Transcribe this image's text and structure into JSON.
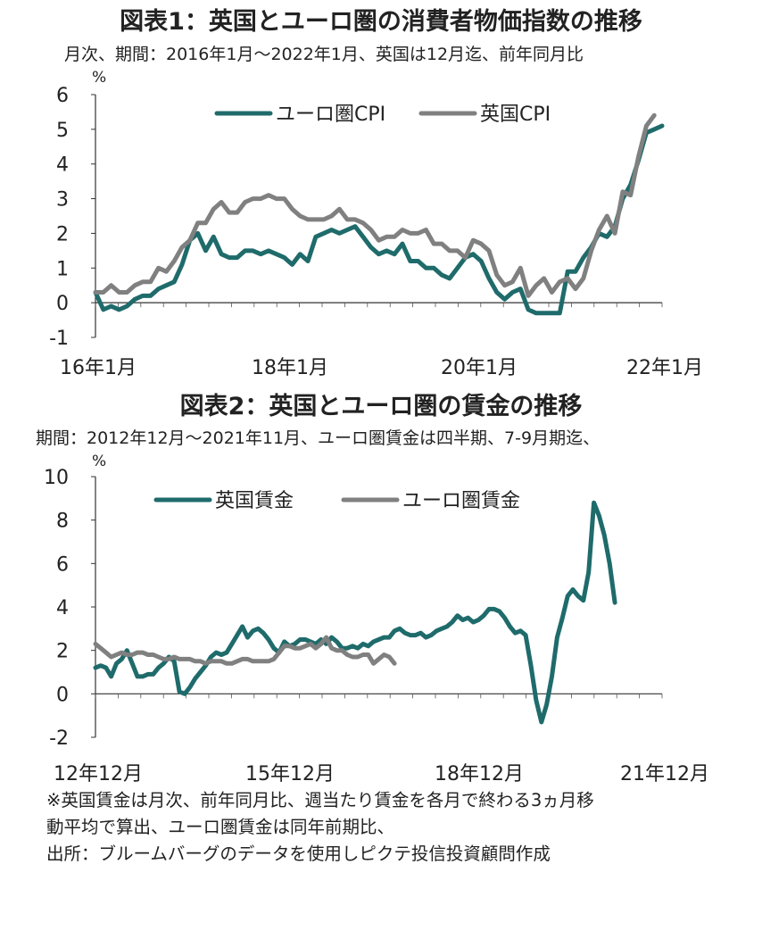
{
  "chart_data": [
    {
      "type": "line",
      "title": "図表1：英国とユーロ圏の消費者物価指数の推移",
      "subtitle": "月次、期間：2016年1月～2022年1月、英国は12月迄、前年同月比",
      "unit": "%",
      "ylim": [
        -1,
        6
      ],
      "yticks": [
        "6",
        "5",
        "4",
        "3",
        "2",
        "1",
        "0",
        "-1"
      ],
      "xticks": [
        "16年1月",
        "18年1月",
        "20年1月",
        "22年1月"
      ],
      "legend_position": "top",
      "grid": false,
      "series": [
        {
          "name": "ユーロ圏CPI",
          "color": "#1f6b6b",
          "values": [
            0.3,
            -0.2,
            -0.1,
            -0.2,
            -0.1,
            0.1,
            0.2,
            0.2,
            0.4,
            0.5,
            0.6,
            1.1,
            1.8,
            2.0,
            1.5,
            1.9,
            1.4,
            1.3,
            1.3,
            1.5,
            1.5,
            1.4,
            1.5,
            1.4,
            1.3,
            1.1,
            1.4,
            1.2,
            1.9,
            2.0,
            2.1,
            2.0,
            2.1,
            2.2,
            1.9,
            1.6,
            1.4,
            1.5,
            1.4,
            1.7,
            1.2,
            1.2,
            1.0,
            1.0,
            0.8,
            0.7,
            1.0,
            1.3,
            1.4,
            1.2,
            0.7,
            0.3,
            0.1,
            0.3,
            0.4,
            -0.2,
            -0.3,
            -0.3,
            -0.3,
            -0.3,
            0.9,
            0.9,
            1.3,
            1.6,
            2.0,
            1.9,
            2.2,
            3.0,
            3.4,
            4.1,
            4.9,
            5.0,
            5.1
          ]
        },
        {
          "name": "英国CPI",
          "color": "#808080",
          "values": [
            0.3,
            0.3,
            0.5,
            0.3,
            0.3,
            0.5,
            0.6,
            0.6,
            1.0,
            0.9,
            1.2,
            1.6,
            1.8,
            2.3,
            2.3,
            2.7,
            2.9,
            2.6,
            2.6,
            2.9,
            3.0,
            3.0,
            3.1,
            3.0,
            3.0,
            2.7,
            2.5,
            2.4,
            2.4,
            2.4,
            2.5,
            2.7,
            2.4,
            2.4,
            2.3,
            2.1,
            1.8,
            1.9,
            1.9,
            2.1,
            2.0,
            2.0,
            2.1,
            1.7,
            1.7,
            1.5,
            1.5,
            1.3,
            1.8,
            1.7,
            1.5,
            0.8,
            0.5,
            0.6,
            1.0,
            0.2,
            0.5,
            0.7,
            0.3,
            0.6,
            0.7,
            0.4,
            0.7,
            1.5,
            2.1,
            2.5,
            2.0,
            3.2,
            3.1,
            4.2,
            5.1,
            5.4
          ]
        }
      ]
    },
    {
      "type": "line",
      "title": "図表2：英国とユーロ圏の賃金の推移",
      "subtitle": "期間：2012年12月～2021年11月、ユーロ圏賃金は四半期、7-9月期迄、",
      "unit": "%",
      "ylim": [
        -2,
        10
      ],
      "yticks": [
        "10",
        "8",
        "6",
        "4",
        "2",
        "0",
        "-2"
      ],
      "xticks": [
        "12年12月",
        "15年12月",
        "18年12月",
        "21年12月"
      ],
      "legend_position": "top",
      "grid": false,
      "series": [
        {
          "name": "英国賃金",
          "color": "#1f6b6b",
          "values": [
            1.2,
            1.3,
            1.2,
            0.8,
            1.4,
            1.6,
            2.0,
            1.4,
            0.8,
            0.8,
            0.9,
            0.9,
            1.2,
            1.4,
            1.7,
            1.5,
            0.1,
            0.0,
            0.3,
            0.7,
            1.0,
            1.3,
            1.7,
            1.9,
            1.8,
            1.9,
            2.3,
            2.7,
            3.1,
            2.6,
            2.9,
            3.0,
            2.8,
            2.5,
            2.1,
            1.9,
            2.4,
            2.2,
            2.3,
            2.5,
            2.5,
            2.4,
            2.3,
            2.5,
            2.3,
            2.6,
            2.4,
            2.1,
            2.1,
            2.2,
            2.1,
            2.3,
            2.2,
            2.4,
            2.5,
            2.6,
            2.6,
            2.9,
            3.0,
            2.8,
            2.7,
            2.7,
            2.8,
            2.6,
            2.7,
            2.9,
            3.0,
            3.1,
            3.3,
            3.6,
            3.4,
            3.5,
            3.3,
            3.4,
            3.6,
            3.9,
            3.9,
            3.8,
            3.5,
            3.1,
            2.8,
            2.9,
            2.7,
            1.3,
            -0.3,
            -1.3,
            -0.5,
            0.8,
            2.6,
            3.5,
            4.5,
            4.8,
            4.5,
            4.3,
            5.6,
            8.8,
            8.2,
            7.3,
            6.0,
            4.2
          ]
        },
        {
          "name": "ユーロ圏賃金",
          "color": "#808080",
          "values": [
            2.3,
            2.1,
            1.9,
            1.7,
            1.8,
            1.9,
            1.8,
            1.8,
            1.9,
            1.9,
            1.8,
            1.8,
            1.7,
            1.6,
            1.6,
            1.7,
            1.6,
            1.6,
            1.6,
            1.5,
            1.5,
            1.4,
            1.5,
            1.5,
            1.5,
            1.4,
            1.4,
            1.5,
            1.6,
            1.6,
            1.5,
            1.5,
            1.5,
            1.5,
            1.6,
            1.9,
            2.2,
            2.2,
            2.1,
            2.1,
            2.2,
            2.3,
            2.1,
            2.3,
            2.6,
            2.1,
            2.0,
            2.0,
            1.8,
            1.7,
            1.7,
            1.8,
            1.8,
            1.4,
            1.6,
            1.8,
            1.7,
            1.4
          ]
        }
      ]
    }
  ],
  "notes": [
    "※英国賃金は月次、前年同月比、週当たり賃金を各月で終わる3ヵ月移",
    "動平均で算出、ユーロ圏賃金は同年前期比、",
    "出所：ブルームバーグのデータを使用しピクテ投信投資顧問作成"
  ]
}
